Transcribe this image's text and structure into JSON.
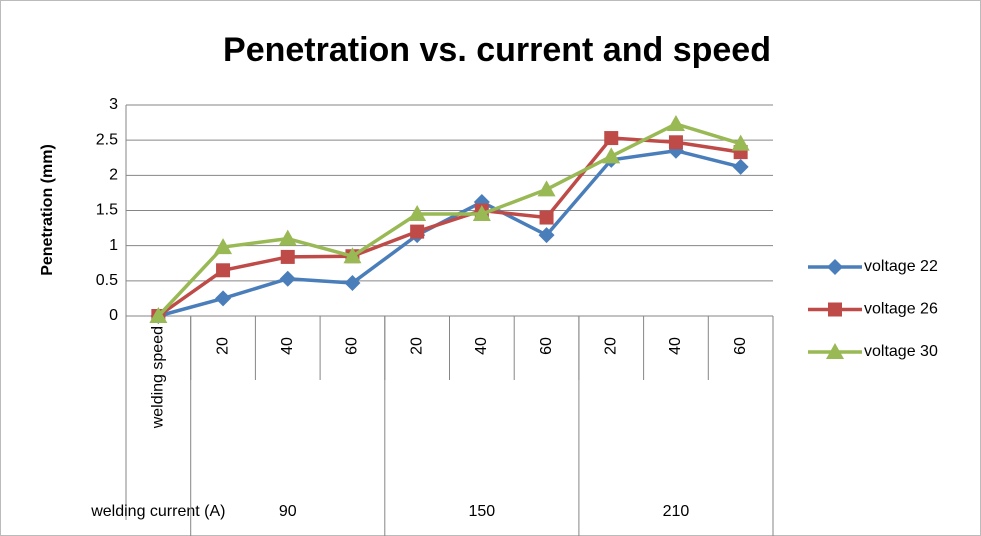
{
  "chart_data": {
    "type": "line",
    "title": "Penetration vs. current and speed",
    "y_label": "Penetration (mm)",
    "categories": [
      "welding speed",
      "20",
      "40",
      "60",
      "20",
      "40",
      "60",
      "20",
      "40",
      "60"
    ],
    "category_groups": [
      "welding current (A)",
      "90",
      "150",
      "210"
    ],
    "series": [
      {
        "name": "voltage 22",
        "color": "#4a7ebb",
        "marker": "diamond",
        "values": [
          0,
          0.25,
          0.53,
          0.47,
          1.15,
          1.62,
          1.15,
          2.22,
          2.35,
          2.12
        ]
      },
      {
        "name": "voltage 26",
        "color": "#be4b48",
        "marker": "square",
        "values": [
          0,
          0.65,
          0.84,
          0.85,
          1.2,
          1.5,
          1.4,
          2.53,
          2.47,
          2.33
        ]
      },
      {
        "name": "voltage 30",
        "color": "#98b954",
        "marker": "triangle",
        "values": [
          0,
          0.98,
          1.1,
          0.85,
          1.45,
          1.45,
          1.8,
          2.27,
          2.73,
          2.45
        ]
      }
    ],
    "ylim": [
      0,
      3
    ],
    "yticks": [
      0,
      0.5,
      1,
      1.5,
      2,
      2.5,
      3
    ],
    "grid": true,
    "legend": "right"
  }
}
